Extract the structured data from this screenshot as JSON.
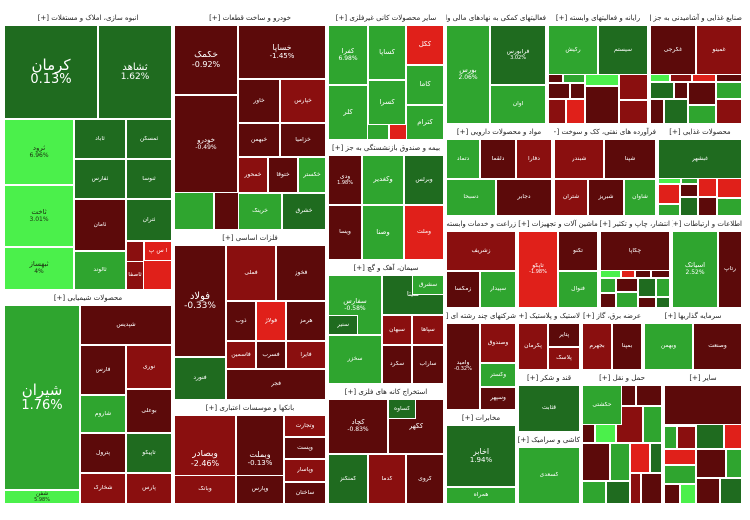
{
  "chart_data": {
    "type": "treemap",
    "colors": {
      "dark_green": "#1f6b1f",
      "mid_green": "#2fa52f",
      "light_green": "#3ed43e",
      "bright_green": "#4bf04b",
      "dark_red": "#5c0a0a",
      "mid_red": "#8a0f0f",
      "bright_red": "#e0201a"
    },
    "sectors": [
      {
        "header": "انبوه سازی، املاک و مستغلات [+]",
        "tiles": [
          {
            "name": "کرمان",
            "change": "0.13%"
          },
          {
            "name": "ثشاهد",
            "change": "1.62%"
          },
          {
            "name": "ثرود",
            "change": "6.96%"
          },
          {
            "name": "ثاباد",
            "change": ""
          },
          {
            "name": "ثاخت",
            "change": "3.01%"
          },
          {
            "name": "ثمسکن",
            "change": ""
          },
          {
            "name": "ثفارس",
            "change": ""
          },
          {
            "name": "ثبهساز",
            "change": "4%"
          },
          {
            "name": "ثنوسا",
            "change": ""
          },
          {
            "name": "ثتران",
            "change": ""
          },
          {
            "name": "آ س پ",
            "change": ""
          },
          {
            "name": "ثعمرا",
            "change": ""
          },
          {
            "name": "ثامان",
            "change": ""
          },
          {
            "name": "ثالوند",
            "change": ""
          },
          {
            "name": "ثاصفا",
            "change": ""
          }
        ]
      },
      {
        "header": "محصولات شیمیایی [+]",
        "tiles": [
          {
            "name": "شیران",
            "change": "1.76%"
          },
          {
            "name": "شپدیس",
            "change": ""
          },
          {
            "name": "فارس",
            "change": ""
          },
          {
            "name": "نوری",
            "change": ""
          },
          {
            "name": "شاروم",
            "change": ""
          },
          {
            "name": "بوعلی",
            "change": ""
          },
          {
            "name": "پترول",
            "change": ""
          },
          {
            "name": "تاپیکو",
            "change": ""
          },
          {
            "name": "شخارک",
            "change": ""
          },
          {
            "name": "پارس",
            "change": ""
          },
          {
            "name": "شفن",
            "change": "5.98%"
          }
        ]
      },
      {
        "header": "خودرو و ساخت قطعات [+]",
        "tiles": [
          {
            "name": "خکمک",
            "change": "-0.92%"
          },
          {
            "name": "خساپا",
            "change": "-1.45%"
          },
          {
            "name": "خودرو",
            "change": "-0.49%"
          },
          {
            "name": "خاور",
            "change": ""
          },
          {
            "name": "خپارس",
            "change": ""
          },
          {
            "name": "خبهمن",
            "change": ""
          },
          {
            "name": "خزامیا",
            "change": ""
          },
          {
            "name": "خمحور",
            "change": ""
          },
          {
            "name": "ختوقا",
            "change": ""
          },
          {
            "name": "خگستر",
            "change": ""
          },
          {
            "name": "خرینگ",
            "change": ""
          },
          {
            "name": "خشرق",
            "change": ""
          }
        ]
      },
      {
        "header": "فلزات اساسی [+]",
        "tiles": [
          {
            "name": "فولاد",
            "change": "-0.33%"
          },
          {
            "name": "فملی",
            "change": ""
          },
          {
            "name": "فخوز",
            "change": ""
          },
          {
            "name": "ذوب",
            "change": ""
          },
          {
            "name": "فولاژ",
            "change": ""
          },
          {
            "name": "هرمز",
            "change": ""
          },
          {
            "name": "فاسمین",
            "change": ""
          },
          {
            "name": "فسرب",
            "change": ""
          },
          {
            "name": "فایرا",
            "change": ""
          },
          {
            "name": "فنورد",
            "change": ""
          },
          {
            "name": "فجر",
            "change": ""
          }
        ]
      },
      {
        "header": "بانکها و موسسات اعتباری [+]",
        "tiles": [
          {
            "name": "وبصادر",
            "change": "-2.46%"
          },
          {
            "name": "وبملت",
            "change": "-0.13%"
          },
          {
            "name": "وتجارت",
            "change": ""
          },
          {
            "name": "وپست",
            "change": ""
          },
          {
            "name": "وپاسار",
            "change": ""
          },
          {
            "name": "وپارس",
            "change": ""
          },
          {
            "name": "ساختان",
            "change": ""
          },
          {
            "name": "وبانک",
            "change": ""
          }
        ]
      },
      {
        "header": "سایر محصولات کانی غیرفلزی [+]",
        "tiles": [
          {
            "name": "کفرا",
            "change": "6.98%"
          },
          {
            "name": "کساپا",
            "change": ""
          },
          {
            "name": "کگل",
            "change": ""
          },
          {
            "name": "کلر",
            "change": ""
          },
          {
            "name": "کسرا",
            "change": ""
          },
          {
            "name": "کاما",
            "change": ""
          },
          {
            "name": "کترام",
            "change": ""
          }
        ]
      },
      {
        "header": "سیمان، آهک و گچ [+]",
        "tiles": [
          {
            "name": "سفارس",
            "change": "-0.58%"
          },
          {
            "name": "سیتا",
            "change": ""
          },
          {
            "name": "سبهان",
            "change": ""
          },
          {
            "name": "سپاها",
            "change": ""
          },
          {
            "name": "سخزر",
            "change": ""
          },
          {
            "name": "سکرد",
            "change": ""
          },
          {
            "name": "ساراب",
            "change": ""
          },
          {
            "name": "سنیر",
            "change": ""
          },
          {
            "name": "سشرق",
            "change": ""
          }
        ]
      },
      {
        "header": "بیمه و صندوق بازنشستگی به جز [+]",
        "tiles": [
          {
            "name": "ودی",
            "change": "1.98%"
          },
          {
            "name": "وکغدیر",
            "change": ""
          },
          {
            "name": "وبرلس",
            "change": ""
          },
          {
            "name": "ویسا",
            "change": ""
          },
          {
            "name": "وصنا",
            "change": ""
          },
          {
            "name": "وملت",
            "change": ""
          }
        ]
      },
      {
        "header": "استخراج کانه های فلزی [+]",
        "tiles": [
          {
            "name": "کچاد",
            "change": "-0.83%"
          },
          {
            "name": "کگهر",
            "change": ""
          },
          {
            "name": "کمنگنز",
            "change": ""
          },
          {
            "name": "کدما",
            "change": ""
          },
          {
            "name": "کروی",
            "change": ""
          },
          {
            "name": "کساوه",
            "change": ""
          }
        ]
      },
      {
        "header": "فعالیتهای کمکی به نهادهای مالی واسط [+]",
        "tiles": [
          {
            "name": "بورس",
            "change": "2.06%"
          },
          {
            "name": "فرابورس",
            "change": "3.02%"
          },
          {
            "name": "اوان",
            "change": ""
          }
        ]
      },
      {
        "header": "مواد و محصولات دارویی [+]",
        "tiles": [
          {
            "name": "دتماد",
            "change": ""
          },
          {
            "name": "دلقما",
            "change": ""
          },
          {
            "name": "دفارا",
            "change": ""
          },
          {
            "name": "دسبحا",
            "change": ""
          },
          {
            "name": "دجابر",
            "change": ""
          }
        ]
      },
      {
        "header": "زراعت و خدمات وابسته [+]",
        "tiles": [
          {
            "name": "زشریف",
            "change": ""
          },
          {
            "name": "زمگسا",
            "change": ""
          },
          {
            "name": "سپیدار",
            "change": ""
          }
        ]
      },
      {
        "header": "شرکتهای چند رشته ای [+]",
        "tiles": [
          {
            "name": "وامید",
            "change": "-0.32%"
          },
          {
            "name": "وصندوق",
            "change": ""
          },
          {
            "name": "وگستر",
            "change": ""
          },
          {
            "name": "وسپهر",
            "change": ""
          }
        ]
      },
      {
        "header": "مخابرات [+]",
        "tiles": [
          {
            "name": "اخابر",
            "change": "1.94%"
          },
          {
            "name": "همراه",
            "change": ""
          }
        ]
      },
      {
        "header": "فرآورده های نفتی، کک و سوخت [+]",
        "tiles": [
          {
            "name": "شبندر",
            "change": ""
          },
          {
            "name": "شپنا",
            "change": ""
          },
          {
            "name": "شتران",
            "change": ""
          },
          {
            "name": "شبریز",
            "change": ""
          },
          {
            "name": "شاوان",
            "change": ""
          }
        ]
      },
      {
        "header": "ماشین آلات و تجهیزات [+]",
        "tiles": [
          {
            "name": "تاپکو",
            "change": "-1.98%"
          },
          {
            "name": "تکنو",
            "change": ""
          },
          {
            "name": "فنوال",
            "change": ""
          }
        ]
      },
      {
        "header": "اطلاعات و ارتباطات [+]",
        "tiles": [
          {
            "name": "اسیاتک",
            "change": "2.52%"
          },
          {
            "name": "رتاپ",
            "change": ""
          }
        ]
      },
      {
        "header": "لاستیک و پلاستیک [+]",
        "tiles": [
          {
            "name": "پکرمان",
            "change": ""
          },
          {
            "name": "پتایر",
            "change": ""
          },
          {
            "name": "پلاسک",
            "change": ""
          }
        ]
      },
      {
        "header": "عرضه برق، گاز [+]",
        "tiles": [
          {
            "name": "بجهرم",
            "change": ""
          },
          {
            "name": "بمپنا",
            "change": ""
          }
        ]
      },
      {
        "header": "رایانه و فعالیتهای وابسته [+]",
        "tiles": [
          {
            "name": "رکیش",
            "change": ""
          },
          {
            "name": "سیستم",
            "change": ""
          }
        ]
      },
      {
        "header": "صنایع غذایی و آشامیدنی به جز [+]",
        "tiles": [
          {
            "name": "غگرجی",
            "change": ""
          },
          {
            "name": "غمینو",
            "change": ""
          }
        ]
      },
      {
        "header": "محصولات غذایی [+]",
        "tiles": [
          {
            "name": "غبشهر",
            "change": ""
          }
        ]
      },
      {
        "header": "انتشار، چاپ و تکثیر [+]",
        "tiles": [
          {
            "name": "چکاپا",
            "change": ""
          }
        ]
      },
      {
        "header": "سرمایه گذاریها [+]",
        "tiles": [
          {
            "name": "وبهمن",
            "change": ""
          },
          {
            "name": "وصنعت",
            "change": ""
          }
        ]
      },
      {
        "header": "قند و شکر [+]",
        "tiles": [
          {
            "name": "قثابت",
            "change": ""
          }
        ]
      },
      {
        "header": "کاشی و سرامیک [+]",
        "tiles": [
          {
            "name": "کسعدی",
            "change": ""
          }
        ]
      },
      {
        "header": "حمل و نقل [+]",
        "tiles": [
          {
            "name": "حکشتی",
            "change": ""
          }
        ]
      },
      {
        "header": "سایر [+]",
        "tiles": [
          {
            "name": "",
            "change": ""
          }
        ]
      }
    ]
  }
}
